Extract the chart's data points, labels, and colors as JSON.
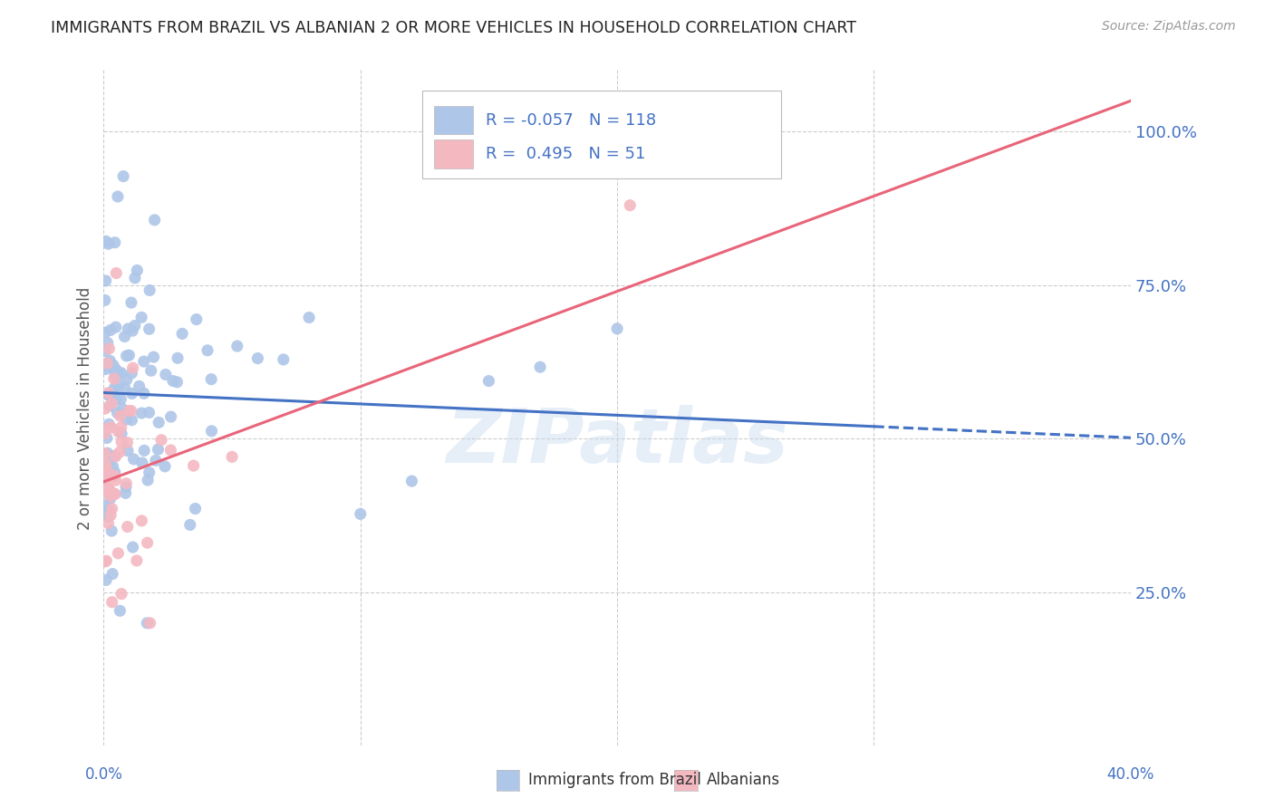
{
  "title": "IMMIGRANTS FROM BRAZIL VS ALBANIAN 2 OR MORE VEHICLES IN HOUSEHOLD CORRELATION CHART",
  "source": "Source: ZipAtlas.com",
  "ylabel": "2 or more Vehicles in Household",
  "brazil_R": -0.057,
  "brazil_N": 118,
  "albanians_R": 0.495,
  "albanians_N": 51,
  "brazil_color": "#aec6e8",
  "brazil_line_color": "#4472c4",
  "albanians_color": "#f4b8c1",
  "albanians_line_color": "#e8657a",
  "watermark": "ZIPatlas",
  "legend_brazil_label": "Immigrants from Brazil",
  "legend_albanians_label": "Albanians",
  "xmin": 0.0,
  "xmax": 40.0,
  "ymin": 0.0,
  "ymax": 110.0,
  "brazil_line_x0": 0.0,
  "brazil_line_y0": 57.5,
  "brazil_line_x1": 30.0,
  "brazil_line_y1": 52.0,
  "brazil_line_dash_x0": 30.0,
  "brazil_line_dash_x1": 40.0,
  "albanians_line_x0": 0.0,
  "albanians_line_y0": 43.0,
  "albanians_line_x1": 40.0,
  "albanians_line_y1": 105.0
}
